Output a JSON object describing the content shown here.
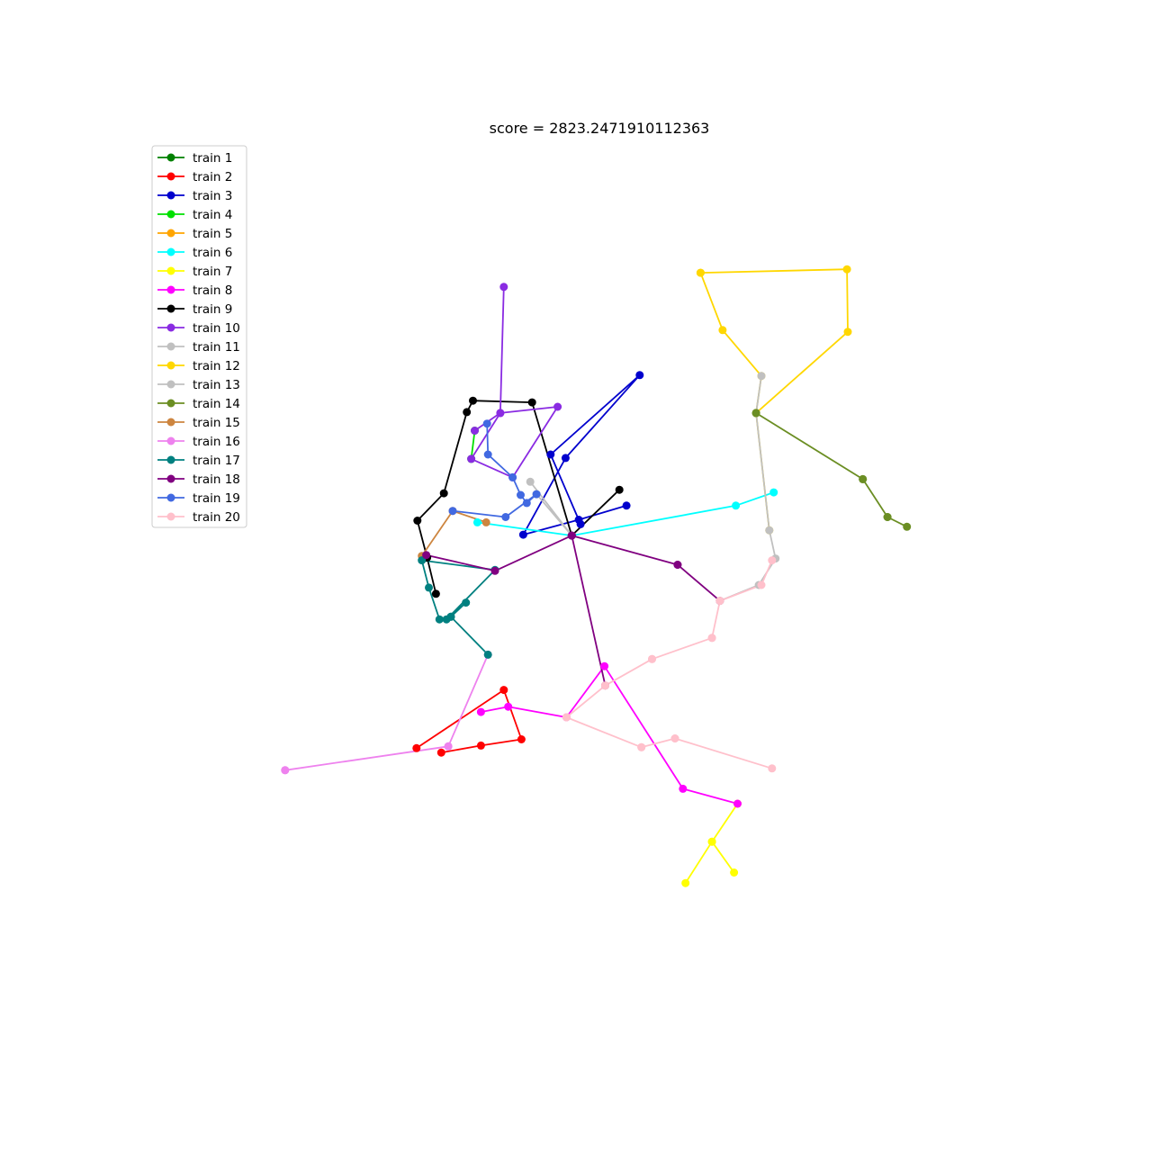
{
  "chart_data": {
    "type": "line",
    "title": "score = 2823.2471910112363",
    "xlabel": "",
    "ylabel": "",
    "grid": false,
    "axes_visible": false,
    "legend_position": "upper-left",
    "xlim": [
      0,
      100
    ],
    "ylim": [
      0,
      100
    ],
    "series": [
      {
        "name": "train 1",
        "color": "#008000",
        "points": []
      },
      {
        "name": "train 2",
        "color": "#ff0000",
        "points": [
          [
            30.9,
            31.5
          ],
          [
            40.8,
            38.1
          ],
          [
            42.8,
            32.5
          ],
          [
            38.2,
            31.8
          ],
          [
            33.7,
            31.0
          ]
        ]
      },
      {
        "name": "train 3",
        "color": "#0000cd",
        "points": [
          [
            54.7,
            59.0
          ],
          [
            49.3,
            57.4
          ],
          [
            43.0,
            55.7
          ],
          [
            47.8,
            64.4
          ],
          [
            56.2,
            73.8
          ],
          [
            46.1,
            64.8
          ],
          [
            49.5,
            56.9
          ]
        ]
      },
      {
        "name": "train 4",
        "color": "#00e000",
        "points": [
          [
            37.5,
            67.5
          ],
          [
            37.1,
            64.3
          ]
        ]
      },
      {
        "name": "train 5",
        "color": "#ffa500",
        "points": []
      },
      {
        "name": "train 6",
        "color": "#00ffff",
        "points": [
          [
            71.4,
            60.5
          ],
          [
            67.1,
            59.0
          ],
          [
            48.5,
            55.6
          ],
          [
            37.8,
            57.1
          ]
        ]
      },
      {
        "name": "train 7",
        "color": "#ffff00",
        "points": [
          [
            61.4,
            16.2
          ],
          [
            64.4,
            20.9
          ],
          [
            66.9,
            17.4
          ],
          [
            64.4,
            20.9
          ],
          [
            67.3,
            25.2
          ]
        ]
      },
      {
        "name": "train 8",
        "color": "#ff00ff",
        "points": [
          [
            67.3,
            25.2
          ],
          [
            61.1,
            26.9
          ],
          [
            52.2,
            40.8
          ],
          [
            47.9,
            35.0
          ],
          [
            41.3,
            36.2
          ],
          [
            38.2,
            35.6
          ]
        ]
      },
      {
        "name": "train 9",
        "color": "#000000",
        "points": [
          [
            53.9,
            60.8
          ],
          [
            48.5,
            55.6
          ],
          [
            44.0,
            70.7
          ],
          [
            37.3,
            70.9
          ],
          [
            36.6,
            69.6
          ],
          [
            34.0,
            60.4
          ],
          [
            31.0,
            57.3
          ],
          [
            32.1,
            53.1
          ],
          [
            33.1,
            49.0
          ]
        ]
      },
      {
        "name": "train 10",
        "color": "#8a2be2",
        "points": [
          [
            40.8,
            83.8
          ],
          [
            40.4,
            69.5
          ],
          [
            37.1,
            64.3
          ],
          [
            41.8,
            62.2
          ],
          [
            46.9,
            70.2
          ],
          [
            40.4,
            69.5
          ],
          [
            37.5,
            67.5
          ]
        ]
      },
      {
        "name": "train 11",
        "color": "#c0c0c0",
        "points": [
          [
            43.8,
            61.7
          ],
          [
            48.5,
            55.6
          ],
          [
            44.5,
            60.3
          ]
        ]
      },
      {
        "name": "train 12",
        "color": "#ffd700",
        "points": [
          [
            63.1,
            85.4
          ],
          [
            79.7,
            85.8
          ],
          [
            79.8,
            78.7
          ],
          [
            69.4,
            69.5
          ],
          [
            70.9,
            56.2
          ],
          [
            69.4,
            69.5
          ],
          [
            70.0,
            73.7
          ],
          [
            65.6,
            78.9
          ],
          [
            63.1,
            85.4
          ]
        ]
      },
      {
        "name": "train 13",
        "color": "#c0c0c0",
        "points": [
          [
            69.4,
            69.5
          ],
          [
            70.0,
            73.7
          ],
          [
            69.4,
            69.5
          ],
          [
            70.9,
            56.2
          ],
          [
            71.6,
            53.0
          ],
          [
            69.7,
            50.0
          ],
          [
            65.3,
            48.2
          ]
        ]
      },
      {
        "name": "train 14",
        "color": "#6b8e23",
        "points": [
          [
            69.4,
            69.5
          ],
          [
            81.5,
            62.0
          ],
          [
            84.3,
            57.7
          ],
          [
            86.5,
            56.6
          ],
          [
            84.3,
            57.7
          ],
          [
            81.5,
            62.0
          ],
          [
            69.4,
            69.5
          ]
        ]
      },
      {
        "name": "train 15",
        "color": "#cd853f",
        "points": [
          [
            38.8,
            57.1
          ],
          [
            35.0,
            58.4
          ],
          [
            31.5,
            53.3
          ]
        ]
      },
      {
        "name": "train 16",
        "color": "#ee82ee",
        "points": [
          [
            16.0,
            29.0
          ],
          [
            34.5,
            31.7
          ],
          [
            39.0,
            42.1
          ],
          [
            34.5,
            31.7
          ],
          [
            16.0,
            29.0
          ]
        ]
      },
      {
        "name": "train 17",
        "color": "#008080",
        "points": [
          [
            39.0,
            42.1
          ],
          [
            34.8,
            46.4
          ],
          [
            36.5,
            48.0
          ],
          [
            34.3,
            46.1
          ],
          [
            39.8,
            51.7
          ],
          [
            31.5,
            52.8
          ],
          [
            32.3,
            49.7
          ],
          [
            33.5,
            46.1
          ],
          [
            34.8,
            46.4
          ]
        ]
      },
      {
        "name": "train 18",
        "color": "#800080",
        "points": [
          [
            48.5,
            55.6
          ],
          [
            52.3,
            38.6
          ],
          [
            48.5,
            55.6
          ],
          [
            60.5,
            52.3
          ],
          [
            65.3,
            48.2
          ],
          [
            60.5,
            52.3
          ],
          [
            48.5,
            55.6
          ],
          [
            39.8,
            51.6
          ],
          [
            32.0,
            53.4
          ]
        ]
      },
      {
        "name": "train 19",
        "color": "#4169e1",
        "points": [
          [
            38.9,
            68.3
          ],
          [
            39.0,
            64.8
          ],
          [
            41.8,
            62.2
          ],
          [
            42.7,
            60.2
          ],
          [
            43.4,
            59.3
          ],
          [
            44.5,
            60.3
          ],
          [
            41.0,
            57.7
          ],
          [
            35.0,
            58.4
          ]
        ]
      },
      {
        "name": "train 20",
        "color": "#ffc0cb",
        "points": [
          [
            71.2,
            52.8
          ],
          [
            70.0,
            50.0
          ],
          [
            65.3,
            48.2
          ],
          [
            64.4,
            44.0
          ],
          [
            57.6,
            41.6
          ],
          [
            52.3,
            38.6
          ],
          [
            47.9,
            35.0
          ],
          [
            56.4,
            31.6
          ],
          [
            60.2,
            32.6
          ],
          [
            71.2,
            29.2
          ],
          [
            60.2,
            32.6
          ],
          [
            56.4,
            31.6
          ],
          [
            47.9,
            35.0
          ],
          [
            52.3,
            38.6
          ],
          [
            57.6,
            41.6
          ],
          [
            64.4,
            44.0
          ],
          [
            65.3,
            48.2
          ]
        ]
      }
    ]
  }
}
